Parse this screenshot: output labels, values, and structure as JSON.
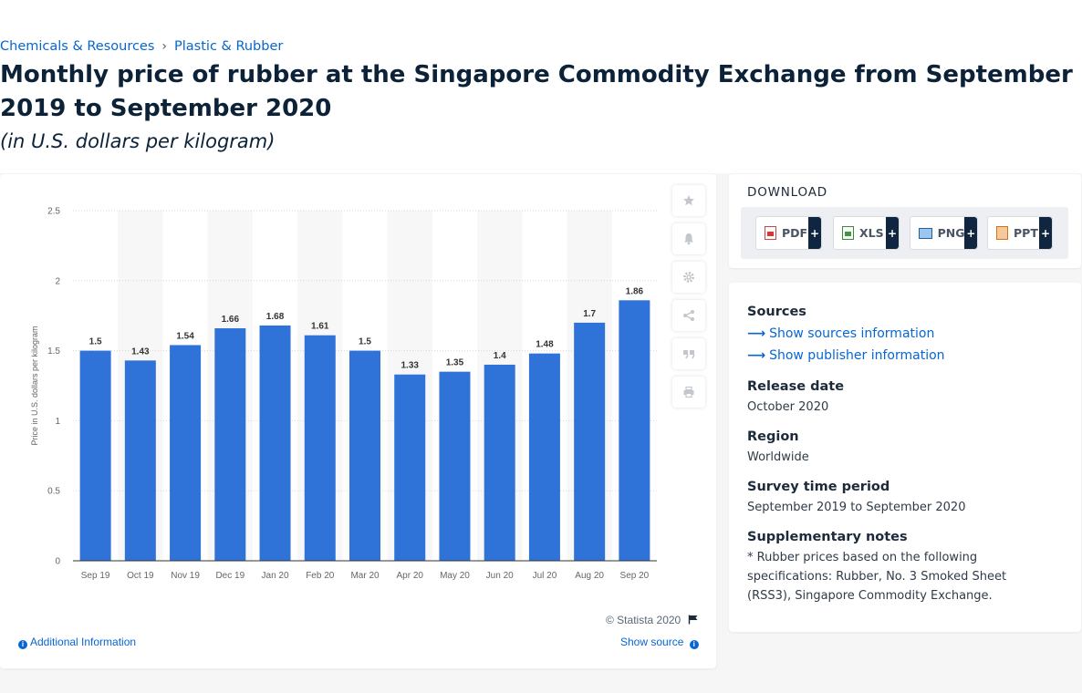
{
  "breadcrumb": [
    "Chemicals & Resources",
    "Plastic & Rubber"
  ],
  "breadcrumb_separator": "›",
  "title": "Monthly price of rubber at the Singapore Commodity Exchange from September 2019 to September 2020",
  "subtitle": "(in U.S. dollars per kilogram)",
  "chart_data": {
    "type": "bar",
    "categories": [
      "Sep 19",
      "Oct 19",
      "Nov 19",
      "Dec 19",
      "Jan 20",
      "Feb 20",
      "Mar 20",
      "Apr 20",
      "May 20",
      "Jun 20",
      "Jul 20",
      "Aug 20",
      "Sep 20"
    ],
    "values": [
      1.5,
      1.43,
      1.54,
      1.66,
      1.68,
      1.61,
      1.5,
      1.33,
      1.35,
      1.4,
      1.48,
      1.7,
      1.86
    ],
    "value_labels": [
      "1.5",
      "1.43",
      "1.54",
      "1.66",
      "1.68",
      "1.61",
      "1.5",
      "1.33",
      "1.35",
      "1.4",
      "1.48",
      "1.7",
      "1.86"
    ],
    "ylabel": "Price in U.S. dollars per kilogram",
    "ylim": [
      0,
      2.5
    ],
    "yticks": [
      "0",
      "0.5",
      "1",
      "1.5",
      "2",
      "2.5"
    ],
    "grid": true,
    "bar_color": "#2f73d8"
  },
  "chart_footer": {
    "copyright": "© Statista 2020",
    "additional_info": "Additional Information",
    "show_source": "Show source"
  },
  "tools": [
    "star-icon",
    "bell-icon",
    "gear-icon",
    "share-icon",
    "quote-icon",
    "print-icon"
  ],
  "download": {
    "label": "DOWNLOAD",
    "buttons": [
      "PDF",
      "XLS",
      "PNG",
      "PPT"
    ],
    "plus": "+"
  },
  "info": {
    "sources_heading": "Sources",
    "show_sources": "Show sources information",
    "show_publisher": "Show publisher information",
    "release_heading": "Release date",
    "release_value": "October 2020",
    "region_heading": "Region",
    "region_value": "Worldwide",
    "survey_heading": "Survey time period",
    "survey_value": "September 2019 to September 2020",
    "notes_heading": "Supplementary notes",
    "notes_value": "* Rubber prices based on the following specifications: Rubber, No. 3 Smoked Sheet (RSS3), Singapore Commodity Exchange."
  }
}
